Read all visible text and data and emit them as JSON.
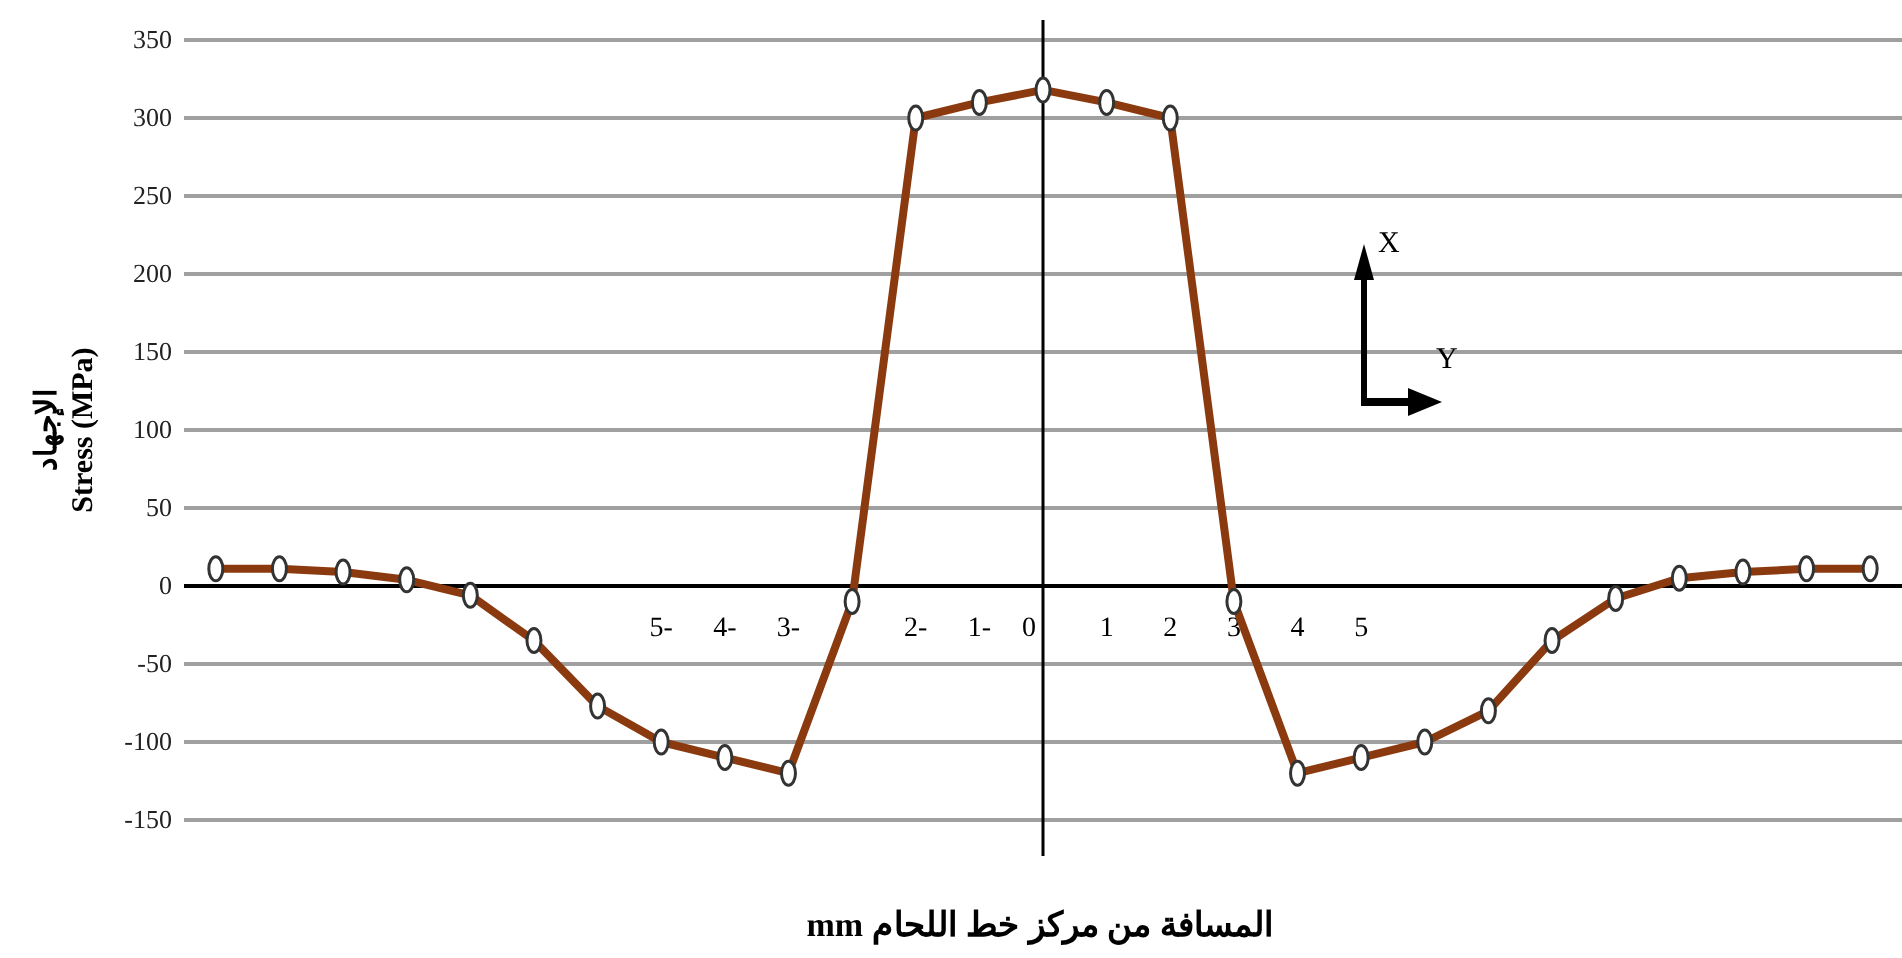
{
  "chart_data": {
    "type": "line",
    "xlabel": "المسافة من مركز خط اللحام mm",
    "ylabel": "الإجهاد\nStress (MPa)",
    "categories": [
      null,
      null,
      null,
      null,
      null,
      null,
      null,
      "5-",
      "4-",
      "3-",
      null,
      "2-",
      "1-",
      "0",
      "1",
      "2",
      "3",
      "4",
      "5",
      null,
      null,
      null,
      null,
      null,
      null,
      null,
      null
    ],
    "series": [
      {
        "color": "#8b3a0f",
        "values": [
          11,
          11,
          9,
          4,
          -6,
          -35,
          -77,
          -100,
          -110,
          -120,
          -10,
          300,
          310,
          318,
          310,
          300,
          -10,
          -120,
          -110,
          -100,
          -80,
          -35,
          -8,
          5,
          9,
          11,
          11
        ]
      }
    ],
    "ylim": [
      -150,
      350
    ],
    "yticks": [
      -150,
      -100,
      -50,
      0,
      50,
      100,
      150,
      200,
      250,
      300,
      350
    ],
    "grid": "y",
    "marker": "circle",
    "line_style": "solid",
    "ref_lines": [
      {
        "axis": "x",
        "value": "0",
        "color": "#000000"
      }
    ],
    "annotations": [
      "X",
      "Y"
    ]
  }
}
